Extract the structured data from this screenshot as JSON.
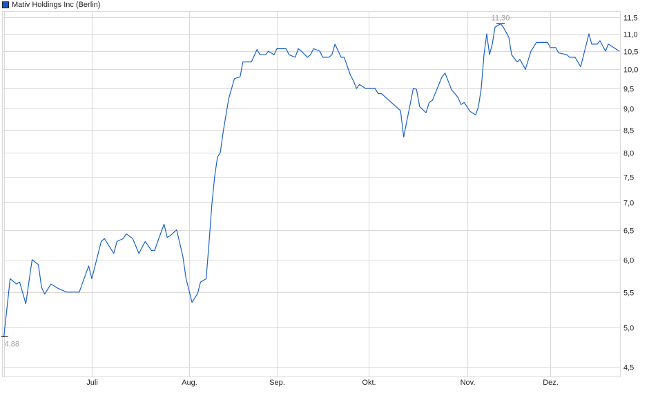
{
  "chart_data": {
    "type": "line",
    "title": "",
    "legend": [
      {
        "name": "Mativ Holdings Inc (Berlin)",
        "color": "#1a56c4"
      }
    ],
    "legend_placement": "top-left",
    "y_scale": "log",
    "ylim": [
      4.5,
      11.5
    ],
    "y_ticks": [
      "4,5",
      "5,0",
      "5,5",
      "6,0",
      "6,5",
      "7,0",
      "7,5",
      "8,0",
      "8,5",
      "9,0",
      "9,5",
      "10,0",
      "10,5",
      "11,0",
      "11,5"
    ],
    "y_tick_values": [
      4.5,
      5.0,
      5.5,
      6.0,
      6.5,
      7.0,
      7.5,
      8.0,
      8.5,
      9.0,
      9.5,
      10.0,
      10.5,
      11.0,
      11.5
    ],
    "x_ticks": [
      {
        "label": "Juli",
        "date": "07-01"
      },
      {
        "label": "Aug.",
        "date": "08-01"
      },
      {
        "label": "Sep.",
        "date": "09-01"
      },
      {
        "label": "Okt.",
        "date": "10-01"
      },
      {
        "label": "Nov.",
        "date": "11-01"
      },
      {
        "label": "Dez.",
        "date": "12-01"
      }
    ],
    "grid": true,
    "y_axis_side": "right",
    "line_color": "#1a5fc8",
    "annotations": {
      "min": {
        "label": "4,88",
        "value": 4.88,
        "date": "06-03"
      },
      "max": {
        "label": "11,30",
        "value": 11.3,
        "date": "11-13"
      }
    },
    "series": [
      {
        "name": "Mativ Holdings Inc (Berlin)",
        "points": [
          [
            "06-03",
            4.88
          ],
          [
            "06-05",
            5.7
          ],
          [
            "06-07",
            5.62
          ],
          [
            "06-08",
            5.65
          ],
          [
            "06-10",
            5.33
          ],
          [
            "06-12",
            6.0
          ],
          [
            "06-14",
            5.92
          ],
          [
            "06-15",
            5.57
          ],
          [
            "06-16",
            5.47
          ],
          [
            "06-18",
            5.62
          ],
          [
            "06-20",
            5.56
          ],
          [
            "06-23",
            5.5
          ],
          [
            "06-27",
            5.5
          ],
          [
            "06-30",
            5.9
          ],
          [
            "07-01",
            5.7
          ],
          [
            "07-04",
            6.3
          ],
          [
            "07-05",
            6.35
          ],
          [
            "07-08",
            6.1
          ],
          [
            "07-09",
            6.3
          ],
          [
            "07-11",
            6.35
          ],
          [
            "07-12",
            6.43
          ],
          [
            "07-14",
            6.35
          ],
          [
            "07-16",
            6.1
          ],
          [
            "07-18",
            6.3
          ],
          [
            "07-20",
            6.15
          ],
          [
            "07-21",
            6.15
          ],
          [
            "07-22",
            6.3
          ],
          [
            "07-24",
            6.6
          ],
          [
            "07-25",
            6.37
          ],
          [
            "07-26",
            6.4
          ],
          [
            "07-28",
            6.5
          ],
          [
            "07-29",
            6.27
          ],
          [
            "07-30",
            6.05
          ],
          [
            "07-31",
            5.7
          ],
          [
            "08-02",
            5.35
          ],
          [
            "08-04",
            5.48
          ],
          [
            "08-05",
            5.65
          ],
          [
            "08-07",
            5.7
          ],
          [
            "08-08",
            6.27
          ],
          [
            "08-09",
            6.95
          ],
          [
            "08-10",
            7.5
          ],
          [
            "08-11",
            7.9
          ],
          [
            "08-12",
            8.0
          ],
          [
            "08-13",
            8.45
          ],
          [
            "08-14",
            8.85
          ],
          [
            "08-15",
            9.25
          ],
          [
            "08-16",
            9.5
          ],
          [
            "08-17",
            9.75
          ],
          [
            "08-18",
            9.78
          ],
          [
            "08-19",
            9.8
          ],
          [
            "08-20",
            10.2
          ],
          [
            "08-23",
            10.2
          ],
          [
            "08-25",
            10.55
          ],
          [
            "08-26",
            10.4
          ],
          [
            "08-28",
            10.4
          ],
          [
            "08-29",
            10.5
          ],
          [
            "08-31",
            10.4
          ],
          [
            "09-01",
            10.57
          ],
          [
            "09-04",
            10.57
          ],
          [
            "09-05",
            10.4
          ],
          [
            "09-07",
            10.33
          ],
          [
            "09-08",
            10.57
          ],
          [
            "09-09",
            10.5
          ],
          [
            "09-11",
            10.33
          ],
          [
            "09-12",
            10.4
          ],
          [
            "09-13",
            10.57
          ],
          [
            "09-15",
            10.5
          ],
          [
            "09-16",
            10.33
          ],
          [
            "09-18",
            10.33
          ],
          [
            "09-19",
            10.4
          ],
          [
            "09-20",
            10.7
          ],
          [
            "09-22",
            10.33
          ],
          [
            "09-23",
            10.33
          ],
          [
            "09-25",
            9.85
          ],
          [
            "09-26",
            9.7
          ],
          [
            "09-27",
            9.5
          ],
          [
            "09-28",
            9.6
          ],
          [
            "09-30",
            9.5
          ],
          [
            "10-03",
            9.5
          ],
          [
            "10-04",
            9.37
          ],
          [
            "10-05",
            9.37
          ],
          [
            "10-11",
            8.95
          ],
          [
            "10-12",
            8.34
          ],
          [
            "10-15",
            9.5
          ],
          [
            "10-16",
            9.48
          ],
          [
            "10-17",
            9.05
          ],
          [
            "10-19",
            8.9
          ],
          [
            "10-20",
            9.15
          ],
          [
            "10-21",
            9.2
          ],
          [
            "10-24",
            9.8
          ],
          [
            "10-25",
            9.9
          ],
          [
            "10-27",
            9.47
          ],
          [
            "10-29",
            9.28
          ],
          [
            "10-30",
            9.1
          ],
          [
            "10-31",
            9.15
          ],
          [
            "11-02",
            8.93
          ],
          [
            "11-04",
            8.85
          ],
          [
            "11-05",
            9.05
          ],
          [
            "11-06",
            9.5
          ],
          [
            "11-07",
            10.4
          ],
          [
            "11-08",
            11.0
          ],
          [
            "11-09",
            10.4
          ],
          [
            "11-10",
            10.7
          ],
          [
            "11-11",
            11.2
          ],
          [
            "11-13",
            11.3
          ],
          [
            "11-14",
            11.2
          ],
          [
            "11-16",
            10.9
          ],
          [
            "11-17",
            10.4
          ],
          [
            "11-19",
            10.2
          ],
          [
            "11-20",
            10.27
          ],
          [
            "11-22",
            10.0
          ],
          [
            "11-24",
            10.5
          ],
          [
            "11-26",
            10.75
          ],
          [
            "11-30",
            10.75
          ],
          [
            "12-01",
            10.6
          ],
          [
            "12-03",
            10.6
          ],
          [
            "12-04",
            10.45
          ],
          [
            "12-07",
            10.4
          ],
          [
            "12-08",
            10.33
          ],
          [
            "12-10",
            10.33
          ],
          [
            "12-12",
            10.07
          ],
          [
            "12-15",
            11.0
          ],
          [
            "12-16",
            10.7
          ],
          [
            "12-18",
            10.7
          ],
          [
            "12-19",
            10.8
          ],
          [
            "12-21",
            10.5
          ],
          [
            "12-22",
            10.7
          ],
          [
            "12-24",
            10.6
          ],
          [
            "12-26",
            10.5
          ]
        ]
      }
    ]
  }
}
